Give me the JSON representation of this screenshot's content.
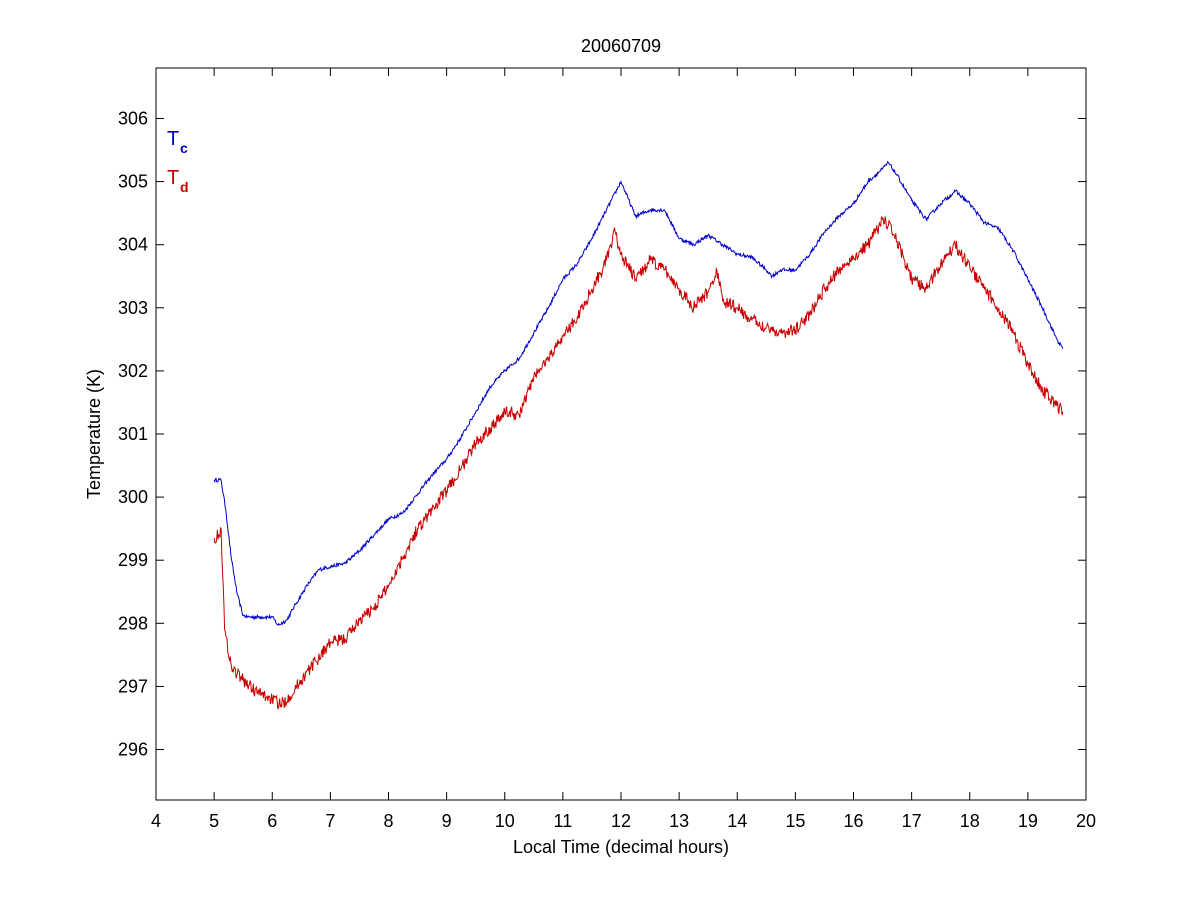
{
  "chart_data": {
    "type": "line",
    "title": "20060709",
    "xlabel": "Local Time (decimal hours)",
    "ylabel": "Temperature (K)",
    "xlim": [
      4,
      20
    ],
    "ylim": [
      295.2,
      306.8
    ],
    "xticks": [
      "4",
      "5",
      "6",
      "7",
      "8",
      "9",
      "10",
      "11",
      "12",
      "13",
      "14",
      "15",
      "16",
      "17",
      "18",
      "19",
      "20"
    ],
    "yticks": [
      "296",
      "297",
      "298",
      "299",
      "300",
      "301",
      "302",
      "303",
      "304",
      "305",
      "306"
    ],
    "grid": false,
    "legend": {
      "placement": "top-left",
      "entries": [
        {
          "main": "T",
          "sub": "c",
          "color": "#0000c8"
        },
        {
          "main": "T",
          "sub": "d",
          "color": "#c80000"
        }
      ]
    },
    "series": [
      {
        "label": "Tc",
        "color": "#0000c8",
        "x": [
          5.0,
          5.12,
          5.2,
          5.3,
          5.4,
          5.5,
          5.6,
          5.8,
          6.0,
          6.1,
          6.25,
          6.4,
          6.6,
          6.8,
          7.0,
          7.25,
          7.5,
          7.75,
          8.0,
          8.25,
          8.5,
          8.75,
          9.0,
          9.25,
          9.5,
          9.75,
          10.0,
          10.25,
          10.5,
          10.75,
          11.0,
          11.25,
          11.5,
          11.75,
          12.0,
          12.25,
          12.5,
          12.75,
          13.0,
          13.25,
          13.5,
          13.75,
          14.0,
          14.25,
          14.5,
          14.6,
          14.75,
          15.0,
          15.25,
          15.5,
          15.75,
          16.0,
          16.25,
          16.5,
          16.6,
          16.75,
          17.0,
          17.25,
          17.5,
          17.75,
          18.0,
          18.25,
          18.5,
          18.75,
          19.0,
          19.25,
          19.5,
          19.6
        ],
        "y": [
          300.27,
          300.27,
          299.8,
          299.0,
          298.45,
          298.12,
          298.1,
          298.1,
          298.1,
          297.97,
          298.05,
          298.3,
          298.6,
          298.85,
          298.9,
          298.95,
          299.15,
          299.4,
          299.65,
          299.75,
          300.05,
          300.35,
          300.6,
          300.95,
          301.35,
          301.75,
          302.0,
          302.2,
          302.6,
          303.0,
          303.45,
          303.7,
          304.1,
          304.55,
          305.0,
          304.45,
          304.55,
          304.55,
          304.1,
          304.0,
          304.15,
          304.0,
          303.85,
          303.8,
          303.6,
          303.5,
          303.6,
          303.6,
          303.85,
          304.2,
          304.45,
          304.65,
          305.0,
          305.2,
          305.3,
          305.1,
          304.7,
          304.4,
          304.65,
          304.85,
          304.65,
          304.35,
          304.25,
          303.9,
          303.45,
          303.0,
          302.5,
          302.35
        ]
      },
      {
        "label": "Td",
        "color": "#c80000",
        "x": [
          5.0,
          5.08,
          5.12,
          5.18,
          5.3,
          5.5,
          5.75,
          6.0,
          6.15,
          6.3,
          6.5,
          6.75,
          7.0,
          7.25,
          7.5,
          7.75,
          8.0,
          8.25,
          8.5,
          8.75,
          9.0,
          9.25,
          9.5,
          9.75,
          10.0,
          10.25,
          10.5,
          10.75,
          11.0,
          11.25,
          11.5,
          11.75,
          11.9,
          12.0,
          12.25,
          12.5,
          12.75,
          13.0,
          13.25,
          13.5,
          13.65,
          13.75,
          14.0,
          14.25,
          14.5,
          14.75,
          15.0,
          15.25,
          15.5,
          15.75,
          16.0,
          16.25,
          16.5,
          16.6,
          16.75,
          17.0,
          17.25,
          17.5,
          17.75,
          18.0,
          18.25,
          18.5,
          18.75,
          19.0,
          19.25,
          19.5,
          19.6
        ],
        "y": [
          299.35,
          299.4,
          299.5,
          297.9,
          297.3,
          297.1,
          296.9,
          296.8,
          296.7,
          296.85,
          297.1,
          297.4,
          297.7,
          297.75,
          298.05,
          298.25,
          298.6,
          299.05,
          299.5,
          299.8,
          300.1,
          300.45,
          300.85,
          301.1,
          301.35,
          301.3,
          301.9,
          302.2,
          302.55,
          302.85,
          303.3,
          303.75,
          304.2,
          303.85,
          303.45,
          303.75,
          303.6,
          303.3,
          303.0,
          303.25,
          303.6,
          303.1,
          303.0,
          302.8,
          302.7,
          302.6,
          302.65,
          302.9,
          303.3,
          303.6,
          303.8,
          304.0,
          304.4,
          304.3,
          304.05,
          303.45,
          303.3,
          303.7,
          304.0,
          303.65,
          303.3,
          303.0,
          302.6,
          302.1,
          301.7,
          301.45,
          301.35
        ]
      }
    ]
  }
}
